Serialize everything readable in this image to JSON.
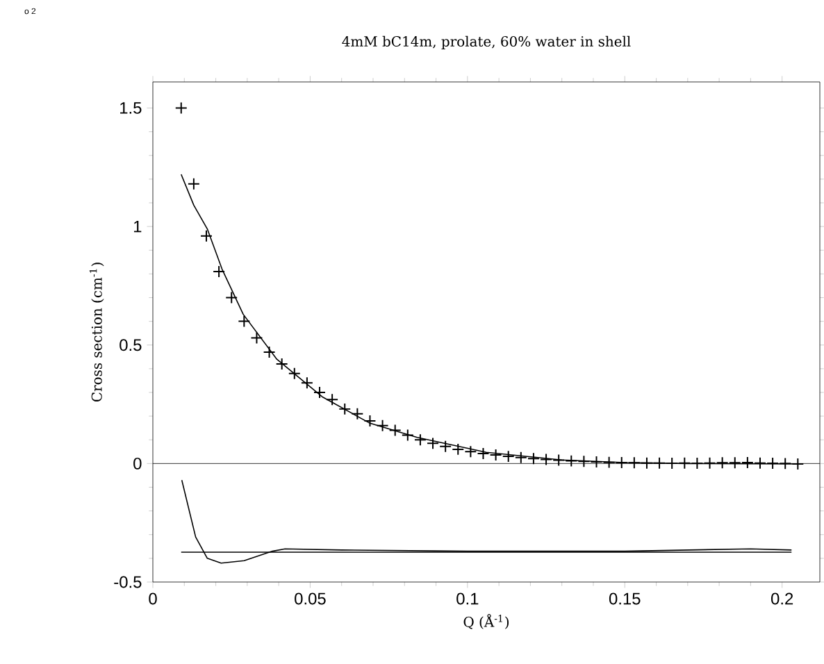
{
  "chart_data": {
    "type": "scatter",
    "title": "4mM bC14m, prolate, 60% water in shell",
    "xlabel": "Q (Å$^{-1}$)",
    "ylabel": "Cross section (cm$^{-1}$)",
    "annotations": [
      "o 2"
    ],
    "xlim": [
      0,
      0.212
    ],
    "ylim": [
      -0.5,
      1.61
    ],
    "xticks": [
      0,
      0.05,
      0.1,
      0.15,
      0.2
    ],
    "yticks": [
      -0.5,
      0,
      0.5,
      1,
      1.5
    ],
    "grid": false,
    "ref_lines": [
      {
        "axis": "y",
        "value": 0
      }
    ],
    "series": [
      {
        "marker": "cross",
        "color": "#000000",
        "x": [
          0.009,
          0.013,
          0.017,
          0.021,
          0.025,
          0.029,
          0.033,
          0.037,
          0.041,
          0.045,
          0.049,
          0.053,
          0.057,
          0.061,
          0.065,
          0.069,
          0.073,
          0.077,
          0.081,
          0.085,
          0.089,
          0.093,
          0.097,
          0.101,
          0.105,
          0.109,
          0.113,
          0.117,
          0.121,
          0.125,
          0.129,
          0.133,
          0.137,
          0.141,
          0.145,
          0.149,
          0.153,
          0.157,
          0.161,
          0.165,
          0.169,
          0.173,
          0.177,
          0.181,
          0.185,
          0.189,
          0.193,
          0.197,
          0.201,
          0.205
        ],
        "values": [
          1.5,
          1.18,
          0.96,
          0.81,
          0.7,
          0.6,
          0.53,
          0.47,
          0.42,
          0.38,
          0.34,
          0.3,
          0.27,
          0.23,
          0.21,
          0.18,
          0.16,
          0.14,
          0.12,
          0.1,
          0.085,
          0.072,
          0.06,
          0.05,
          0.042,
          0.036,
          0.03,
          0.025,
          0.021,
          0.017,
          0.014,
          0.011,
          0.009,
          0.007,
          0.005,
          0.004,
          0.003,
          0.002,
          0.002,
          0.001,
          0.002,
          0.001,
          0.002,
          0.003,
          0.003,
          0.004,
          0.002,
          0.001,
          0.0,
          -0.002
        ]
      },
      {
        "type": "line",
        "marker": "none",
        "line_style": "solid",
        "color": "#000000",
        "x": [
          0.009,
          0.013,
          0.0173,
          0.022,
          0.0287,
          0.0394,
          0.054,
          0.069,
          0.084,
          0.106,
          0.13,
          0.15,
          0.17,
          0.205
        ],
        "values": [
          1.22,
          1.09,
          0.99,
          0.82,
          0.63,
          0.44,
          0.28,
          0.17,
          0.11,
          0.047,
          0.015,
          0.004,
          0.0,
          -0.002
        ]
      },
      {
        "type": "line",
        "marker": "none",
        "line_style": "solid",
        "color": "#000000",
        "x": [
          0.0092,
          0.0136,
          0.0173,
          0.0217,
          0.029,
          0.038,
          0.042,
          0.06,
          0.1,
          0.15,
          0.19,
          0.203
        ],
        "values": [
          -0.07,
          -0.31,
          -0.4,
          -0.42,
          -0.41,
          -0.37,
          -0.36,
          -0.365,
          -0.37,
          -0.37,
          -0.36,
          -0.365
        ]
      },
      {
        "type": "line",
        "marker": "none",
        "line_style": "solid",
        "color": "#000000",
        "x": [
          0.009,
          0.203
        ],
        "values": [
          -0.374,
          -0.374
        ]
      }
    ]
  }
}
